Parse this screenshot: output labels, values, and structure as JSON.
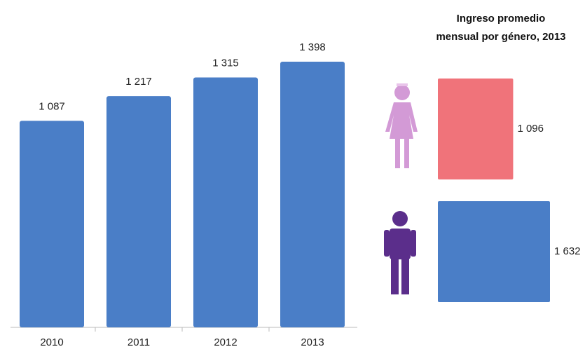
{
  "chart_data": [
    {
      "type": "bar",
      "categories": [
        "2010",
        "2011",
        "2012",
        "2013"
      ],
      "values": [
        1087,
        1217,
        1315,
        1398
      ],
      "value_labels": [
        "1 087",
        "1 217",
        "1 315",
        "1 398"
      ],
      "color": "#4a7ec7"
    },
    {
      "type": "barh",
      "title": "Ingreso promedio\nmensual  por género, 2013",
      "categories": [
        null,
        null
      ],
      "values": [
        1096,
        1632
      ],
      "value_labels": [
        "1 096",
        "1 632"
      ],
      "colors": [
        "#f0737a",
        "#4a7ec7"
      ]
    }
  ]
}
